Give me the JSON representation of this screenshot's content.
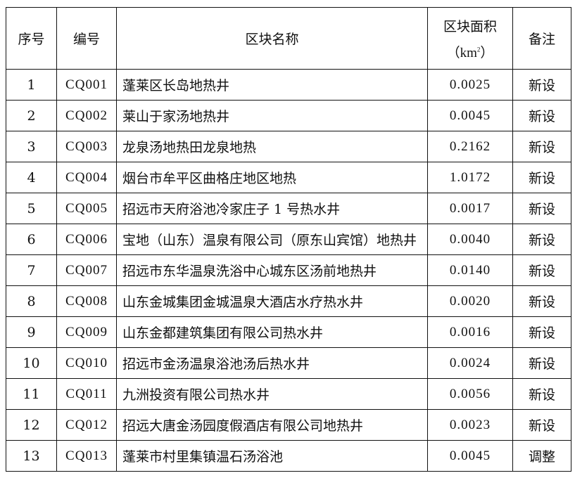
{
  "headers": {
    "seq": "序号",
    "code": "编号",
    "name": "区块名称",
    "area_line1": "区块面积",
    "area_unit_prefix": "（km",
    "area_unit_sup": "2",
    "area_unit_suffix": "）",
    "note": "备注"
  },
  "rows": [
    {
      "seq": "1",
      "code": "CQ001",
      "name": "蓬莱区长岛地热井",
      "area": "0.0025",
      "note": "新设"
    },
    {
      "seq": "2",
      "code": "CQ002",
      "name": "莱山于家汤地热井",
      "area": "0.0045",
      "note": "新设"
    },
    {
      "seq": "3",
      "code": "CQ003",
      "name": "龙泉汤地热田龙泉地热",
      "area": "0.2162",
      "note": "新设"
    },
    {
      "seq": "4",
      "code": "CQ004",
      "name": "烟台市牟平区曲格庄地区地热",
      "area": "1.0172",
      "note": "新设"
    },
    {
      "seq": "5",
      "code": "CQ005",
      "name": "招远市天府浴池冷家庄子 1 号热水井",
      "area": "0.0017",
      "note": "新设"
    },
    {
      "seq": "6",
      "code": "CQ006",
      "name": "宝地（山东）温泉有限公司（原东山宾馆）地热井",
      "area": "0.0040",
      "note": "新设"
    },
    {
      "seq": "7",
      "code": "CQ007",
      "name": "招远市东华温泉洗浴中心城东区汤前地热井",
      "area": "0.0140",
      "note": "新设"
    },
    {
      "seq": "8",
      "code": "CQ008",
      "name": "山东金城集团金城温泉大酒店水疗热水井",
      "area": "0.0020",
      "note": "新设"
    },
    {
      "seq": "9",
      "code": "CQ009",
      "name": "山东金都建筑集团有限公司热水井",
      "area": "0.0016",
      "note": "新设"
    },
    {
      "seq": "10",
      "code": "CQ010",
      "name": "招远市金汤温泉浴池汤后热水井",
      "area": "0.0024",
      "note": "新设"
    },
    {
      "seq": "11",
      "code": "CQ011",
      "name": "九洲投资有限公司热水井",
      "area": "0.0056",
      "note": "新设"
    },
    {
      "seq": "12",
      "code": "CQ012",
      "name": "招远大唐金汤园度假酒店有限公司地热井",
      "area": "0.0023",
      "note": "新设"
    },
    {
      "seq": "13",
      "code": "CQ013",
      "name": "蓬莱市村里集镇温石汤浴池",
      "area": "0.0045",
      "note": "调整"
    }
  ]
}
